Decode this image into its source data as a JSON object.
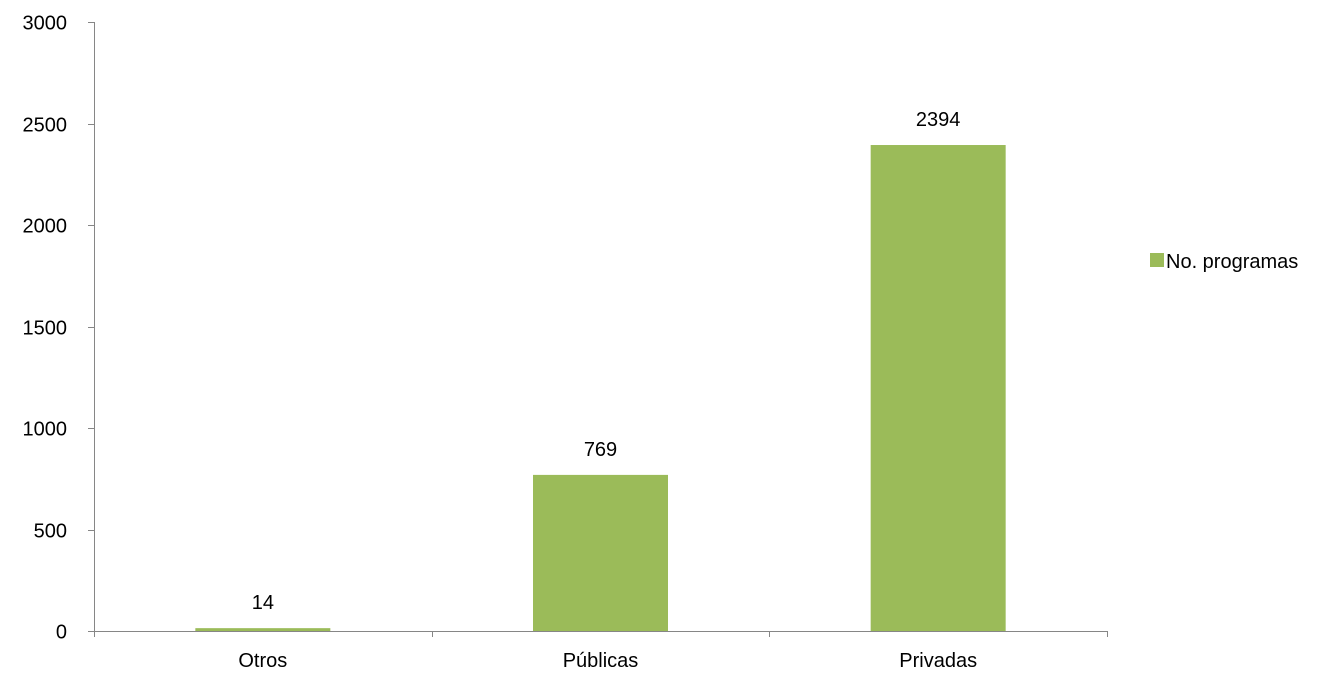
{
  "chart_data": {
    "type": "bar",
    "title": "",
    "xlabel": "",
    "ylabel": "",
    "categories": [
      "Otros",
      "Públicas",
      "Privadas"
    ],
    "series": [
      {
        "name": "No. programas",
        "values": [
          14,
          769,
          2394
        ],
        "color": "#9BBB59"
      }
    ],
    "ylim": [
      0,
      3000
    ],
    "yticks": [
      0,
      500,
      1000,
      1500,
      2000,
      2500,
      3000
    ],
    "data_labels": [
      "14",
      "769",
      "2394"
    ],
    "grid": false,
    "legend_position": "right",
    "axis_color": "#868686"
  }
}
